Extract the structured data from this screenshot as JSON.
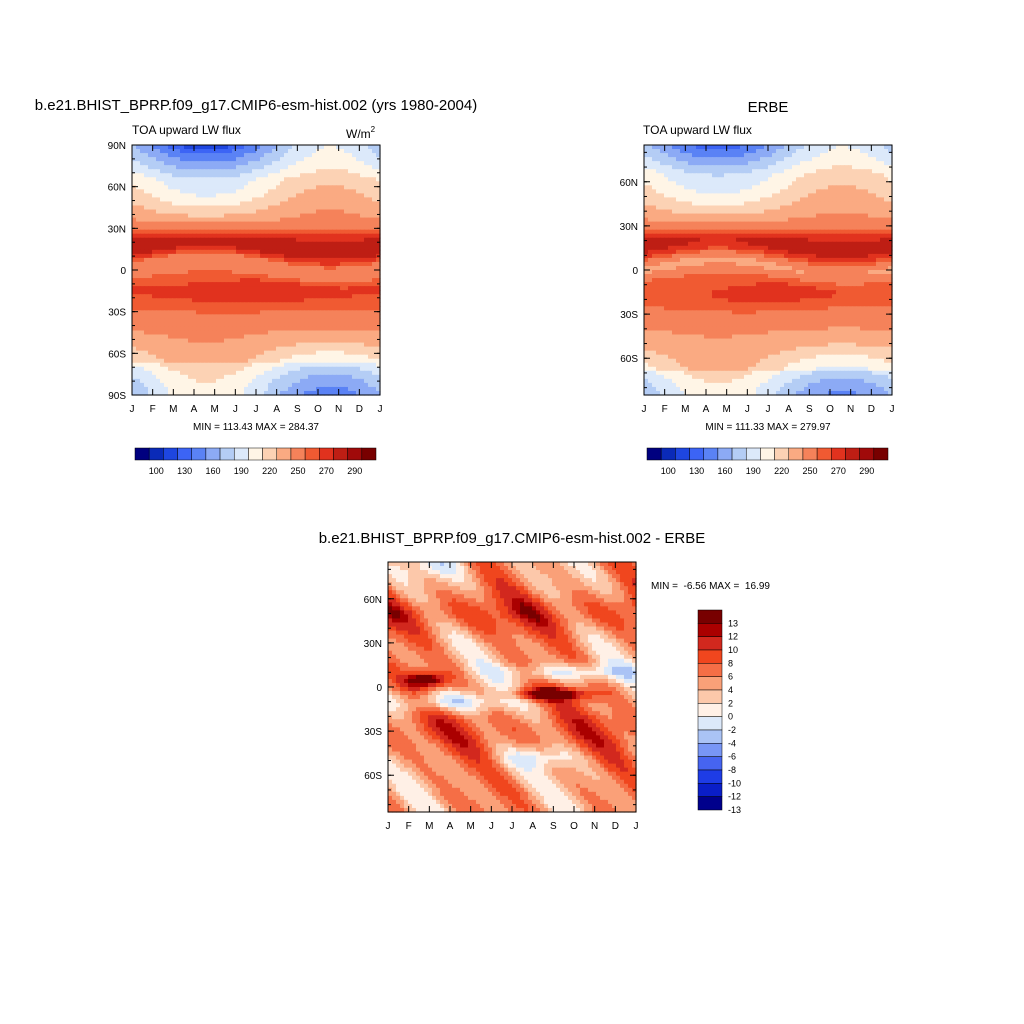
{
  "figure": {
    "background": "#ffffff"
  },
  "chart_data": [
    {
      "type": "heatmap",
      "title": "b.e21.BHIST_BPRP.f09_g17.CMIP6-esm-hist.002 (yrs 1980-2004)",
      "subtitle_left": "TOA upward LW flux",
      "units_label": "W/m",
      "units_exponent": "2",
      "x_tick_labels": [
        "J",
        "F",
        "M",
        "A",
        "M",
        "J",
        "J",
        "A",
        "S",
        "O",
        "N",
        "D",
        "J"
      ],
      "y_tick_labels": [
        "90N",
        "60N",
        "30N",
        "0",
        "30S",
        "60S",
        "90S"
      ],
      "y_tick_values": [
        90,
        60,
        30,
        0,
        -30,
        -60,
        -90
      ],
      "ylim": [
        -90,
        90
      ],
      "stats_text": "MIN = 113.43 MAX = 284.37",
      "min": 113.43,
      "max": 284.37,
      "colorbar_labels": [
        "100",
        "130",
        "160",
        "190",
        "220",
        "250",
        "270",
        "290"
      ]
    },
    {
      "type": "heatmap",
      "title": "ERBE",
      "subtitle_left": "TOA upward LW flux",
      "x_tick_labels": [
        "J",
        "F",
        "M",
        "A",
        "M",
        "J",
        "J",
        "A",
        "S",
        "O",
        "N",
        "D",
        "J"
      ],
      "y_tick_labels": [
        "60N",
        "30N",
        "0",
        "30S",
        "60S"
      ],
      "y_tick_values": [
        60,
        30,
        0,
        -30,
        -60
      ],
      "ylim": [
        -85,
        85
      ],
      "stats_text": "MIN = 111.33 MAX = 279.97",
      "min": 111.33,
      "max": 279.97,
      "colorbar_labels": [
        "100",
        "130",
        "160",
        "190",
        "220",
        "250",
        "270",
        "290"
      ]
    },
    {
      "type": "heatmap",
      "title": "b.e21.BHIST_BPRP.f09_g17.CMIP6-esm-hist.002 - ERBE",
      "x_tick_labels": [
        "J",
        "F",
        "M",
        "A",
        "M",
        "J",
        "J",
        "A",
        "S",
        "O",
        "N",
        "D",
        "J"
      ],
      "y_tick_labels": [
        "60N",
        "30N",
        "0",
        "30S",
        "60S"
      ],
      "y_tick_values": [
        60,
        30,
        0,
        -30,
        -60
      ],
      "ylim": [
        -85,
        85
      ],
      "stats_text": "MIN =  -6.56 MAX =  16.99",
      "min": -6.56,
      "max": 16.99,
      "colorbar_labels": [
        "13",
        "12",
        "10",
        "8",
        "6",
        "4",
        "2",
        "0",
        "-2",
        "-4",
        "-6",
        "-8",
        "-10",
        "-12",
        "-13"
      ]
    }
  ],
  "colors": {
    "abs_scale": [
      "#00007f",
      "#0a2ab8",
      "#1e46e0",
      "#3c64f5",
      "#5a82f5",
      "#8caaf5",
      "#b4cdf5",
      "#dce9fa",
      "#fff5e6",
      "#fcd2b4",
      "#faaa82",
      "#f5825a",
      "#f05a32",
      "#e1321e",
      "#be1e14",
      "#a00a0a",
      "#780000"
    ],
    "diff_scale": [
      "#780000",
      "#aa0000",
      "#d2281e",
      "#f0461e",
      "#f56e46",
      "#faa078",
      "#fcc8aa",
      "#fff0e6",
      "#dce9fa",
      "#aac3f5",
      "#7896f5",
      "#4664f0",
      "#1e3ce6",
      "#0a1ec8",
      "#00008c"
    ]
  }
}
